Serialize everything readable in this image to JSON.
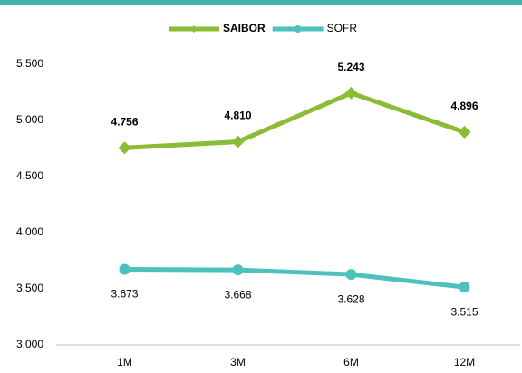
{
  "chart_data": {
    "type": "line",
    "categories": [
      "1M",
      "3M",
      "6M",
      "12M"
    ],
    "series": [
      {
        "name": "SAIBOR",
        "color": "#8cbb35",
        "marker": "diamond",
        "values": [
          4.756,
          4.81,
          5.243,
          4.896
        ],
        "value_labels": [
          "4.756",
          "4.810",
          "5.243",
          "4.896"
        ]
      },
      {
        "name": "SOFR",
        "color": "#4cc1bd",
        "marker": "circle",
        "values": [
          3.673,
          3.668,
          3.628,
          3.515
        ],
        "value_labels": [
          "3.673",
          "3.668",
          "3.628",
          "3.515"
        ]
      }
    ],
    "ylim": [
      3.0,
      5.5
    ],
    "yticks": [
      {
        "value": 3.0,
        "label": "3.000"
      },
      {
        "value": 3.5,
        "label": "3.500"
      },
      {
        "value": 4.0,
        "label": "4.000"
      },
      {
        "value": 4.5,
        "label": "4.500"
      },
      {
        "value": 5.0,
        "label": "5.000"
      },
      {
        "value": 5.5,
        "label": "5.500"
      }
    ],
    "grid": false,
    "legend": "top"
  }
}
